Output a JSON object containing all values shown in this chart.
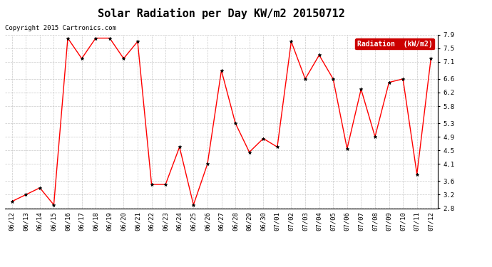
{
  "title": "Solar Radiation per Day KW/m2 20150712",
  "copyright_text": "Copyright 2015 Cartronics.com",
  "legend_label": "Radiation  (kW/m2)",
  "dates": [
    "06/12",
    "06/13",
    "06/14",
    "06/15",
    "06/16",
    "06/17",
    "06/18",
    "06/19",
    "06/20",
    "06/21",
    "06/22",
    "06/23",
    "06/24",
    "06/25",
    "06/26",
    "06/27",
    "06/28",
    "06/29",
    "06/30",
    "07/01",
    "07/02",
    "07/03",
    "07/04",
    "07/05",
    "07/06",
    "07/07",
    "07/08",
    "07/09",
    "07/10",
    "07/11",
    "07/12"
  ],
  "values": [
    3.0,
    3.2,
    3.4,
    2.9,
    7.8,
    7.2,
    7.8,
    7.8,
    7.2,
    7.7,
    3.5,
    3.5,
    4.6,
    2.9,
    4.1,
    6.85,
    5.3,
    4.45,
    4.85,
    4.6,
    7.7,
    6.6,
    7.3,
    6.6,
    4.55,
    6.3,
    4.9,
    6.5,
    6.6,
    3.8,
    7.2
  ],
  "line_color": "red",
  "marker_color": "black",
  "marker": "*",
  "ylim": [
    2.8,
    7.9
  ],
  "yticks": [
    2.8,
    3.2,
    3.6,
    4.1,
    4.5,
    4.9,
    5.3,
    5.8,
    6.2,
    6.6,
    7.1,
    7.5,
    7.9
  ],
  "bg_color": "#ffffff",
  "grid_color": "#bbbbbb",
  "legend_bg": "#cc0000",
  "legend_text_color": "#ffffff",
  "title_fontsize": 11,
  "copyright_fontsize": 6.5,
  "tick_fontsize": 6.5,
  "legend_fontsize": 7
}
